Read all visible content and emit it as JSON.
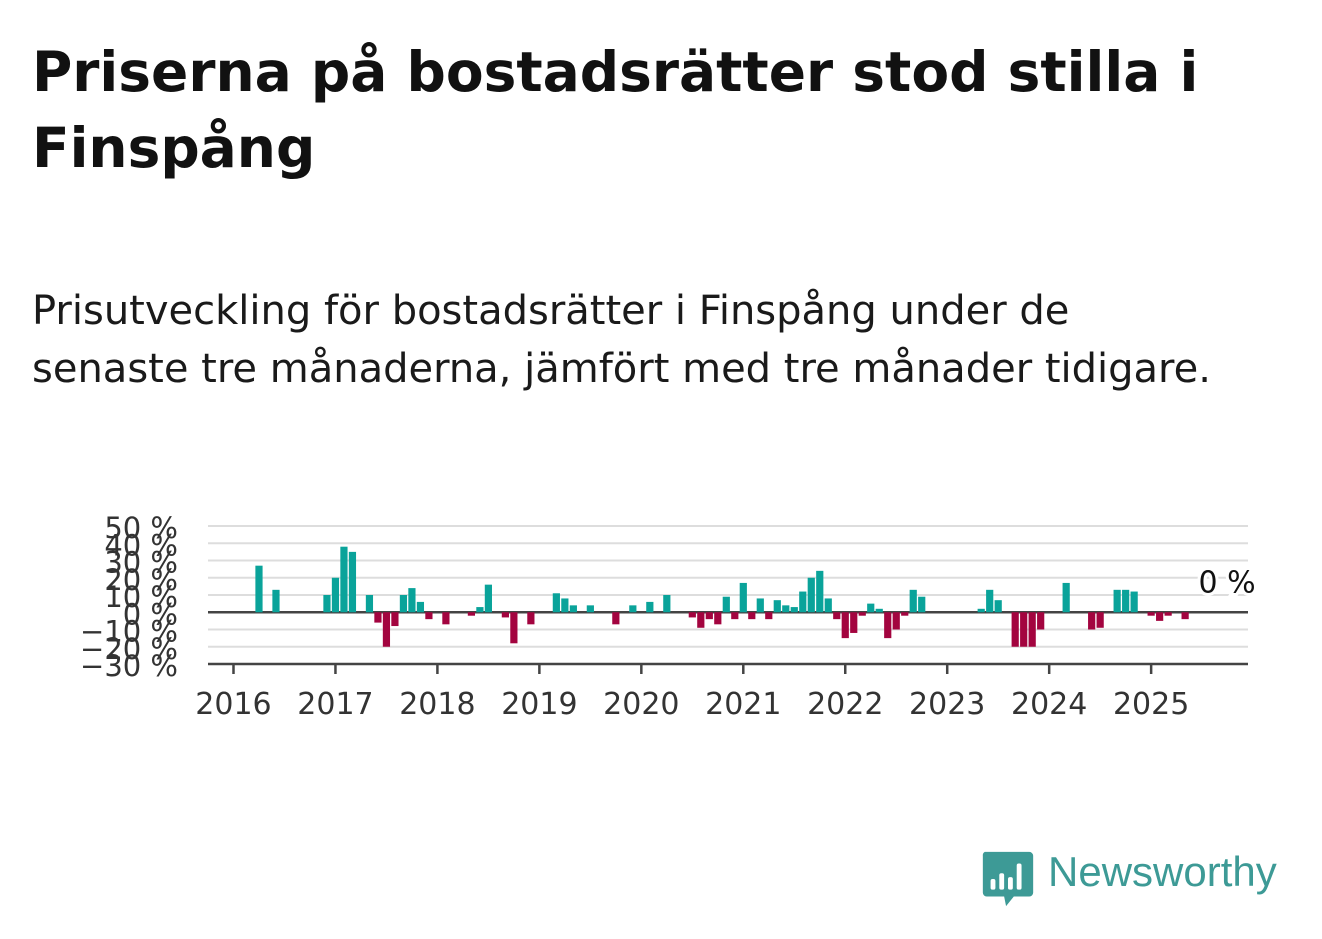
{
  "title": "Priserna på bostadsrätter stod stilla i Finspång",
  "subtitle": "Prisutveckling för bostadsrätter i Finspång under de senaste tre månaderna, jämfört med tre månader tidigare.",
  "brand": {
    "name": "Newsworthy",
    "color": "#3d9a96",
    "icon": "bar-chart-speech-bubble-icon"
  },
  "colors": {
    "positive": "#0aa39a",
    "negative": "#a3043f",
    "grid": "#dddddd",
    "axis": "#444444"
  },
  "chart_data": {
    "type": "bar",
    "y_tick_labels": [
      "50 %",
      "40 %",
      "30 %",
      "20 %",
      "10 %",
      "0 %",
      "−10 %",
      "−20 %",
      "−30 %"
    ],
    "y_ticks": [
      50,
      40,
      30,
      20,
      10,
      0,
      -10,
      -20,
      -30
    ],
    "ylim": [
      -30,
      50
    ],
    "x_tick_labels": [
      "2016",
      "2017",
      "2018",
      "2019",
      "2020",
      "2021",
      "2022",
      "2023",
      "2024",
      "2025"
    ],
    "x_ticks": [
      2016,
      2017,
      2018,
      2019,
      2020,
      2021,
      2022,
      2023,
      2024,
      2025
    ],
    "xlim": [
      2015.75,
      2025.95
    ],
    "annotation": "0 %",
    "grid": true,
    "series": [
      {
        "values": [
          [
            "2016-04",
            27
          ],
          [
            "2016-06",
            13
          ],
          [
            "2016-12",
            10
          ],
          [
            "2017-01",
            20
          ],
          [
            "2017-02",
            38
          ],
          [
            "2017-03",
            35
          ],
          [
            "2017-05",
            10
          ],
          [
            "2017-06",
            -6
          ],
          [
            "2017-07",
            -20
          ],
          [
            "2017-08",
            -8
          ],
          [
            "2017-09",
            10
          ],
          [
            "2017-10",
            14
          ],
          [
            "2017-11",
            6
          ],
          [
            "2017-12",
            -4
          ],
          [
            "2018-02",
            -7
          ],
          [
            "2018-05",
            -2
          ],
          [
            "2018-06",
            3
          ],
          [
            "2018-07",
            16
          ],
          [
            "2018-09",
            -3
          ],
          [
            "2018-10",
            -18
          ],
          [
            "2018-12",
            -7
          ],
          [
            "2019-03",
            11
          ],
          [
            "2019-04",
            8
          ],
          [
            "2019-05",
            4
          ],
          [
            "2019-07",
            4
          ],
          [
            "2019-10",
            -7
          ],
          [
            "2019-12",
            4
          ],
          [
            "2020-02",
            6
          ],
          [
            "2020-04",
            10
          ],
          [
            "2020-07",
            -3
          ],
          [
            "2020-08",
            -9
          ],
          [
            "2020-09",
            -4
          ],
          [
            "2020-10",
            -7
          ],
          [
            "2020-11",
            9
          ],
          [
            "2020-12",
            -4
          ],
          [
            "2021-01",
            17
          ],
          [
            "2021-02",
            -4
          ],
          [
            "2021-03",
            8
          ],
          [
            "2021-04",
            -4
          ],
          [
            "2021-05",
            7
          ],
          [
            "2021-06",
            4
          ],
          [
            "2021-07",
            3
          ],
          [
            "2021-08",
            12
          ],
          [
            "2021-09",
            20
          ],
          [
            "2021-10",
            24
          ],
          [
            "2021-11",
            8
          ],
          [
            "2021-12",
            -4
          ],
          [
            "2022-01",
            -15
          ],
          [
            "2022-02",
            -12
          ],
          [
            "2022-03",
            -2
          ],
          [
            "2022-04",
            5
          ],
          [
            "2022-05",
            2
          ],
          [
            "2022-06",
            -15
          ],
          [
            "2022-07",
            -10
          ],
          [
            "2022-08",
            -2
          ],
          [
            "2022-09",
            13
          ],
          [
            "2022-10",
            9
          ],
          [
            "2023-05",
            2
          ],
          [
            "2023-06",
            13
          ],
          [
            "2023-07",
            7
          ],
          [
            "2023-09",
            -20
          ],
          [
            "2023-10",
            -20
          ],
          [
            "2023-11",
            -20
          ],
          [
            "2023-12",
            -10
          ],
          [
            "2024-03",
            17
          ],
          [
            "2024-06",
            -10
          ],
          [
            "2024-07",
            -9
          ],
          [
            "2024-09",
            13
          ],
          [
            "2024-10",
            13
          ],
          [
            "2024-11",
            12
          ],
          [
            "2025-01",
            -2
          ],
          [
            "2025-02",
            -5
          ],
          [
            "2025-03",
            -2
          ],
          [
            "2025-05",
            -4
          ],
          [
            "2025-09",
            0
          ]
        ]
      }
    ]
  }
}
